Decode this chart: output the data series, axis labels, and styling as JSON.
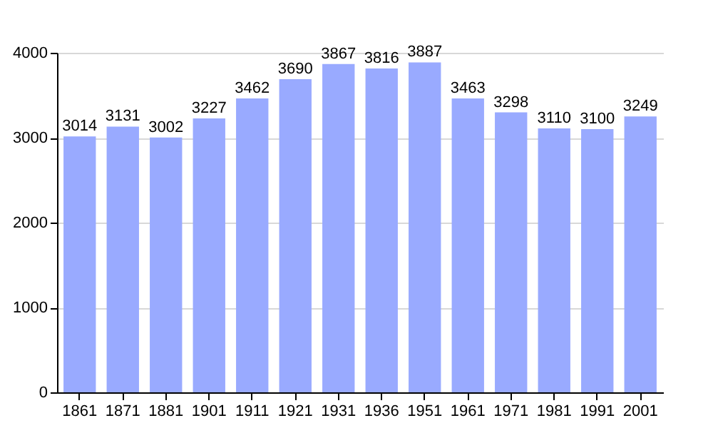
{
  "chart_data": {
    "type": "bar",
    "categories": [
      "1861",
      "1871",
      "1881",
      "1901",
      "1911",
      "1921",
      "1931",
      "1936",
      "1951",
      "1961",
      "1971",
      "1981",
      "1991",
      "2001"
    ],
    "values": [
      3014,
      3131,
      3002,
      3227,
      3462,
      3690,
      3867,
      3816,
      3887,
      3463,
      3298,
      3110,
      3100,
      3249
    ],
    "color": "#99aaff",
    "ylim": [
      0,
      4000
    ],
    "yticks": [
      0,
      1000,
      2000,
      3000,
      4000
    ],
    "grid": "y",
    "data_labels": true
  }
}
